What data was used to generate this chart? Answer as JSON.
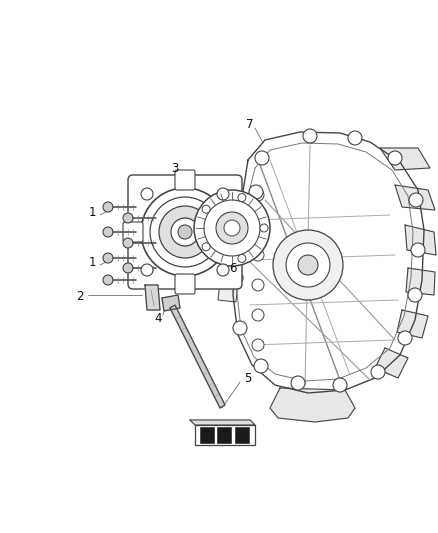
{
  "background_color": "#ffffff",
  "line_color": "#444444",
  "label_color": "#111111",
  "figsize": [
    4.38,
    5.33
  ],
  "dpi": 100,
  "label_fontsize": 8.5
}
